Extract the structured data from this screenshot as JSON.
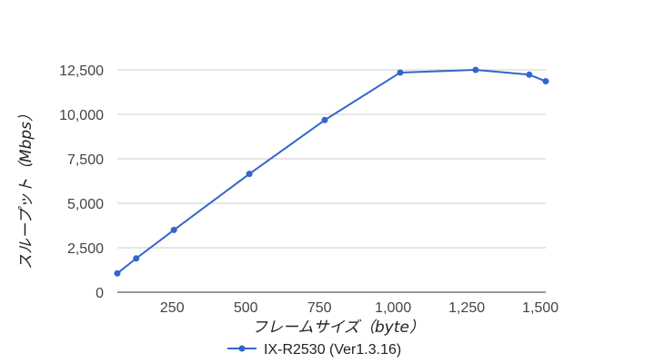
{
  "chart_data": {
    "type": "line",
    "title": "",
    "xlabel": "フレームサイズ（byte）",
    "ylabel": "スループット（Mbps）",
    "xlim": [
      64,
      1518
    ],
    "ylim": [
      0,
      12500
    ],
    "x_ticks": [
      250,
      500,
      750,
      1000,
      1250,
      1500
    ],
    "x_tick_labels": [
      "250",
      "500",
      "750",
      "1,000",
      "1,250",
      "1,500"
    ],
    "y_ticks": [
      0,
      2500,
      5000,
      7500,
      10000,
      12500
    ],
    "y_tick_labels": [
      "0",
      "2,500",
      "5,000",
      "7,500",
      "10,000",
      "12,500"
    ],
    "grid": true,
    "legend_position": "bottom",
    "series": [
      {
        "name": "IX-R2530 (Ver1.3.16)",
        "color": "#3366cc",
        "x": [
          64,
          128,
          256,
          512,
          768,
          1024,
          1280,
          1462,
          1518
        ],
        "y": [
          1060,
          1900,
          3500,
          6650,
          9680,
          12350,
          12500,
          12230,
          11860
        ]
      }
    ]
  }
}
